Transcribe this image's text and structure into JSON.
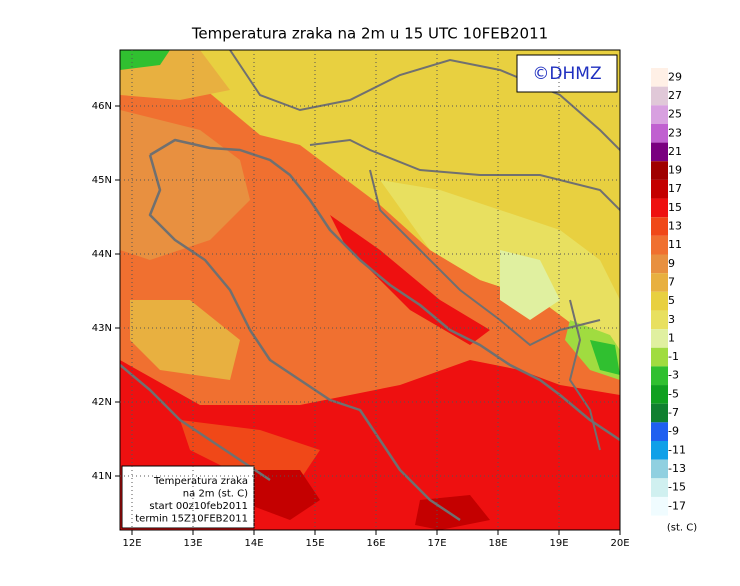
{
  "title": "Temperatura zraka na 2m u 15 UTC 10FEB2011",
  "copyright": "©DHMZ",
  "lon_labels": [
    "12E",
    "13E",
    "14E",
    "15E",
    "16E",
    "17E",
    "18E",
    "19E",
    "20E"
  ],
  "lat_labels": [
    "46N",
    "45N",
    "44N",
    "43N",
    "42N",
    "41N"
  ],
  "info_box": [
    "Temperatura zraka",
    "na 2m (st. C)",
    "start 00z10feb2011",
    "termin 15Z10FEB2011"
  ],
  "colorbar": {
    "labels": [
      "29",
      "27",
      "25",
      "23",
      "21",
      "19",
      "17",
      "15",
      "13",
      "11",
      "9",
      "7",
      "5",
      "3",
      "1",
      "-1",
      "-3",
      "-5",
      "-7",
      "-9",
      "-11",
      "-13",
      "-15",
      "-17"
    ],
    "colors": [
      "#fff0e6",
      "#e0c8d8",
      "#d8a0e0",
      "#c060d0",
      "#7a0080",
      "#a00000",
      "#c40000",
      "#ee1010",
      "#f04818",
      "#f07030",
      "#e89040",
      "#e8b040",
      "#e8d040",
      "#e8e060",
      "#e0f0a0",
      "#a0dc40",
      "#30c030",
      "#10a020",
      "#108030",
      "#2060f0",
      "#10a0e8",
      "#90d0e0",
      "#d0f0f0",
      "#f0fcff"
    ],
    "unit": "(st. C)"
  }
}
